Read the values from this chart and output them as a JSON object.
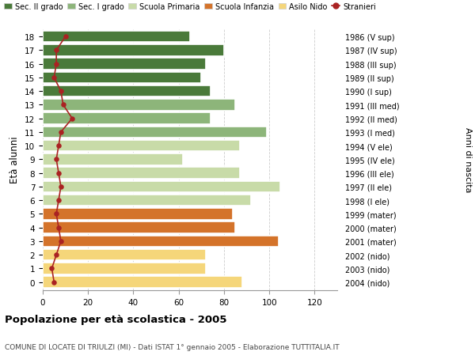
{
  "ages": [
    0,
    1,
    2,
    3,
    4,
    5,
    6,
    7,
    8,
    9,
    10,
    11,
    12,
    13,
    14,
    15,
    16,
    17,
    18
  ],
  "years": [
    "2004 (nido)",
    "2003 (nido)",
    "2002 (nido)",
    "2001 (mater)",
    "2000 (mater)",
    "1999 (mater)",
    "1998 (I ele)",
    "1997 (II ele)",
    "1996 (III ele)",
    "1995 (IV ele)",
    "1994 (V ele)",
    "1993 (I med)",
    "1992 (II med)",
    "1991 (III med)",
    "1990 (I sup)",
    "1989 (II sup)",
    "1988 (III sup)",
    "1987 (IV sup)",
    "1986 (V sup)"
  ],
  "bar_values": [
    88,
    72,
    72,
    104,
    85,
    84,
    92,
    105,
    87,
    62,
    87,
    99,
    74,
    85,
    74,
    70,
    72,
    80,
    65
  ],
  "bar_colors": [
    "#f5d67a",
    "#f5d67a",
    "#f5d67a",
    "#d4732a",
    "#d4732a",
    "#d4732a",
    "#c8dba8",
    "#c8dba8",
    "#c8dba8",
    "#c8dba8",
    "#c8dba8",
    "#8db57a",
    "#8db57a",
    "#8db57a",
    "#4a7a3a",
    "#4a7a3a",
    "#4a7a3a",
    "#4a7a3a",
    "#4a7a3a"
  ],
  "stranieri_values": [
    5,
    4,
    6,
    8,
    7,
    6,
    7,
    8,
    7,
    6,
    7,
    8,
    13,
    9,
    8,
    5,
    6,
    6,
    10
  ],
  "legend_labels": [
    "Sec. II grado",
    "Sec. I grado",
    "Scuola Primaria",
    "Scuola Infanzia",
    "Asilo Nido",
    "Stranieri"
  ],
  "legend_colors": [
    "#4a7a3a",
    "#8db57a",
    "#c8dba8",
    "#d4732a",
    "#f5d67a",
    "#aa2222"
  ],
  "ylabel_text": "Età alunni",
  "right_label": "Anni di nascita",
  "title": "Popolazione per età scolastica - 2005",
  "subtitle": "COMUNE DI LOCATE DI TRIULZI (MI) - Dati ISTAT 1° gennaio 2005 - Elaborazione TUTTITALIA.IT",
  "xlim": [
    0,
    130
  ],
  "xticks": [
    0,
    20,
    40,
    60,
    80,
    100,
    120
  ],
  "bg_color": "#ffffff",
  "grid_color": "#cccccc",
  "bar_edge_color": "#ffffff",
  "stranieri_color": "#aa2222"
}
